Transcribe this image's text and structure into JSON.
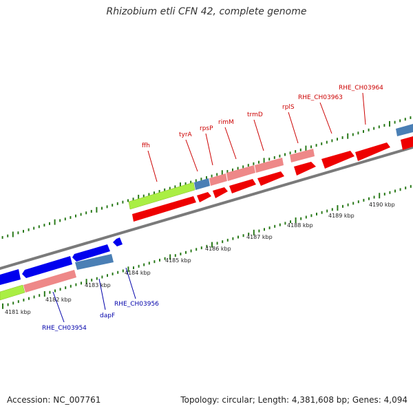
{
  "title": "Rhizobium etli CFN 42, complete genome",
  "footer": {
    "accession": "Accession: NC_007761",
    "info": "Topology: circular; Length: 4,381,608 bp; Genes: 4,094"
  },
  "colors": {
    "cds_forward": "#ee0000",
    "cds_forward_light": "#ee8888",
    "cds_reverse": "#0000ee",
    "cds_reverse_light": "#4a7fb5",
    "rna": "#aaee44",
    "tick": "#2a7a1a",
    "backbone": "#888888",
    "label_forward": "#cc0000",
    "label_reverse": "#0000aa"
  },
  "kbp_labels": [
    "4181 kbp",
    "4182 kbp",
    "4183 kbp",
    "4184 kbp",
    "4185 kbp",
    "4186 kbp",
    "4187 kbp",
    "4188 kbp",
    "4189 kbp",
    "4190 kbp"
  ],
  "gene_labels_forward": [
    "ffh",
    "tyrA",
    "rpsP",
    "rimM",
    "trmD",
    "rplS",
    "RHE_CH03963",
    "RHE_CH03964"
  ],
  "gene_labels_reverse": [
    "RHE_CH03954",
    "dapF",
    "RHE_CH03956"
  ]
}
